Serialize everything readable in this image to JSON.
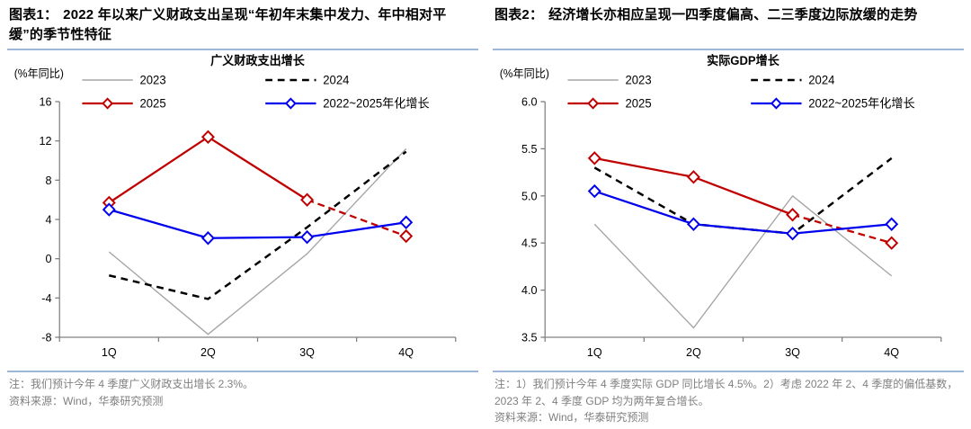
{
  "page": {
    "background": "#FFFFFF"
  },
  "colors": {
    "accent_rule": "#9DB7D8",
    "heading_text": "#000000",
    "note_text": "#7F7F7F",
    "axis": "#808080",
    "series_2023": "#A6A6A6",
    "series_2024": "#000000",
    "series_2025": "#C00000",
    "series_annualized": "#0000EE"
  },
  "figures": [
    {
      "heading_label": "图表1：",
      "heading_text": "2022 年以来广义财政支出呈现“年初年末集中发力、年中相对平缓”的季节性特征",
      "note": "注：我们预计今年 4 季度广义财政支出增长 2.3%。",
      "source": "资料来源：Wind，华泰研究预测"
    },
    {
      "heading_label": "图表2：",
      "heading_text": "经济增长亦相应呈现一四季度偏高、二三季度边际放缓的走势",
      "note": "注：1）我们预计今年 4 季度实际 GDP 同比增长 4.5%。2）考虑 2022 年 2、4 季度的偏低基数，2023 年 2、4 季度 GDP 均为两年复合增长。",
      "source": "资料来源：Wind，华泰研究预测"
    }
  ],
  "chart_data": [
    {
      "type": "line",
      "title": "广义财政支出增长",
      "unit_label": "(%年同比)",
      "categories": [
        "1Q",
        "2Q",
        "3Q",
        "4Q"
      ],
      "series": [
        {
          "name": "2023",
          "color": "#A6A6A6",
          "style": "solid",
          "marker": "none",
          "values": [
            0.7,
            -7.7,
            0.5,
            11.2
          ]
        },
        {
          "name": "2024",
          "color": "#000000",
          "style": "dashed",
          "marker": "none",
          "values": [
            -1.7,
            -4.1,
            3.2,
            10.9
          ]
        },
        {
          "name": "2025",
          "color": "#C00000",
          "style": "solid",
          "marker": "diamond",
          "values": [
            5.7,
            12.4,
            6.0,
            2.3
          ],
          "solid_until_index": 2,
          "forecast_note": "4Q 为华泰研究预测值，虚线段"
        },
        {
          "name": "2022~2025年化增长",
          "color": "#0000EE",
          "style": "solid",
          "marker": "diamond",
          "values": [
            5.0,
            2.1,
            2.2,
            3.7
          ]
        }
      ],
      "ylim": [
        -8,
        16
      ],
      "ytick_step": 4,
      "grid": false,
      "legend_position": "top"
    },
    {
      "type": "line",
      "title": "实际GDP增长",
      "unit_label": "(%年同比)",
      "categories": [
        "1Q",
        "2Q",
        "3Q",
        "4Q"
      ],
      "series": [
        {
          "name": "2023",
          "color": "#A6A6A6",
          "style": "solid",
          "marker": "none",
          "values": [
            4.7,
            3.6,
            5.0,
            4.15
          ]
        },
        {
          "name": "2024",
          "color": "#000000",
          "style": "dashed",
          "marker": "none",
          "values": [
            5.3,
            4.7,
            4.6,
            5.4
          ]
        },
        {
          "name": "2025",
          "color": "#C00000",
          "style": "solid",
          "marker": "diamond",
          "values": [
            5.4,
            5.2,
            4.8,
            4.5
          ],
          "solid_until_index": 2,
          "forecast_note": "4Q 为华泰研究预测值，虚线段"
        },
        {
          "name": "2022~2025年化增长",
          "color": "#0000EE",
          "style": "solid",
          "marker": "diamond",
          "values": [
            5.05,
            4.7,
            4.6,
            4.7
          ]
        }
      ],
      "ylim": [
        3.5,
        6.0
      ],
      "ytick_step": 0.5,
      "grid": false,
      "legend_position": "top"
    }
  ]
}
